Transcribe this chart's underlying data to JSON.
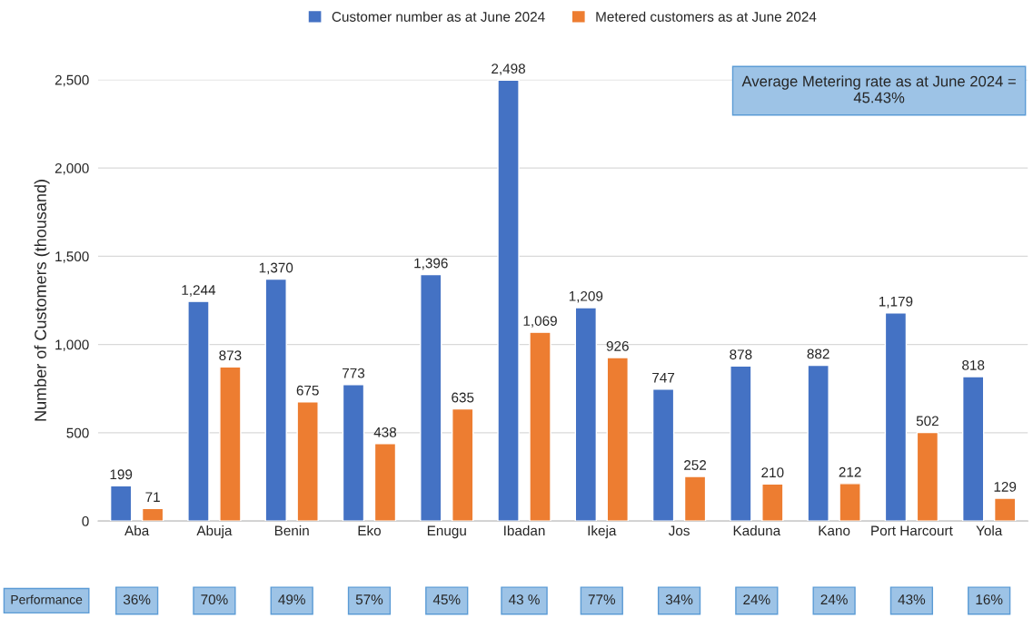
{
  "chart_data": {
    "type": "bar",
    "ylabel": "Number of Customers (thousand)",
    "categories": [
      "Aba",
      "Abuja",
      "Benin",
      "Eko",
      "Enugu",
      "Ibadan",
      "Ikeja",
      "Jos",
      "Kaduna",
      "Kano",
      "Port Harcourt",
      "Yola"
    ],
    "series": [
      {
        "name": "Customer number as at June 2024",
        "color": "#4472c4",
        "values": [
          199,
          1244,
          1370,
          773,
          1396,
          2498,
          1209,
          747,
          878,
          882,
          1179,
          818
        ],
        "value_labels": [
          "199",
          "1,244",
          "1,370",
          "773",
          "1,396",
          "2,498",
          "1,209",
          "747",
          "878",
          "882",
          "1,179",
          "818"
        ]
      },
      {
        "name": "Metered customers as at June 2024",
        "color": "#ed7d31",
        "values": [
          71,
          873,
          675,
          438,
          635,
          1069,
          926,
          252,
          210,
          212,
          502,
          129
        ],
        "value_labels": [
          "71",
          "873",
          "675",
          "438",
          "635",
          "1,069",
          "926",
          "252",
          "210",
          "212",
          "502",
          "129"
        ]
      }
    ],
    "ylim": [
      0,
      2500
    ],
    "yticks": [
      0,
      {
        "value": 500,
        "label": "500"
      },
      {
        "value": 1000,
        "label": "1,000"
      },
      {
        "value": 1500,
        "label": "1,500"
      },
      {
        "value": 2000,
        "label": "2,000"
      },
      {
        "value": 2500,
        "label": "2,500"
      }
    ],
    "grid": "y",
    "legend": "top",
    "annotations": [
      "Average Metering rate as at June 2024 = 45.43%",
      "Performance",
      "36%",
      "70%",
      "49%",
      "57%",
      "45%",
      "43 %",
      "77%",
      "34%",
      "24%",
      "24%",
      "43%",
      "16%"
    ]
  }
}
